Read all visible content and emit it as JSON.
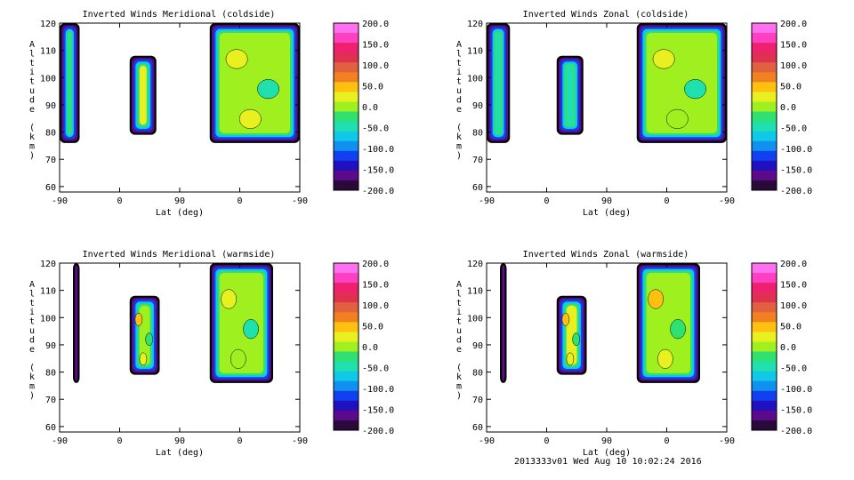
{
  "footer": "2013333v01 Wed Aug 10 10:02:24 2016",
  "chart_data": [
    {
      "type": "contour",
      "title": "Inverted Winds Meridional (coldside)",
      "xlabel": "Lat (deg)",
      "ylabel": "Altitude (km)",
      "x_ticks": [
        "-90",
        "0",
        "90",
        "0",
        "-90"
      ],
      "y_ticks": [
        "60",
        "70",
        "80",
        "90",
        "100",
        "110",
        "120"
      ],
      "ylim": [
        58,
        120
      ],
      "legend": [
        "200.0",
        "150.0",
        "100.0",
        "50.0",
        "0.0",
        "-50.0",
        "-100.0",
        "-150.0",
        "-200.0"
      ],
      "regions": [
        {
          "lat_range": [
            -90,
            -60
          ],
          "alt_range": [
            76,
            120
          ],
          "mean_value": 20
        },
        {
          "lat_range": [
            15,
            55
          ],
          "alt_range": [
            79,
            108
          ],
          "mean_value": 25
        },
        {
          "lat_range": [
            135,
            270
          ],
          "alt_range": [
            76,
            120
          ],
          "mean_value": 10
        }
      ]
    },
    {
      "type": "contour",
      "title": "Inverted Winds Zonal (coldside)",
      "xlabel": "Lat (deg)",
      "ylabel": "Altitude (km)",
      "x_ticks": [
        "-90",
        "0",
        "90",
        "0",
        "-90"
      ],
      "y_ticks": [
        "60",
        "70",
        "80",
        "90",
        "100",
        "110",
        "120"
      ],
      "ylim": [
        58,
        120
      ],
      "legend": [
        "200.0",
        "150.0",
        "100.0",
        "50.0",
        "0.0",
        "-50.0",
        "-100.0",
        "-150.0",
        "-200.0"
      ],
      "regions": [
        {
          "lat_range": [
            -90,
            -55
          ],
          "alt_range": [
            76,
            120
          ],
          "mean_value": -30
        },
        {
          "lat_range": [
            15,
            55
          ],
          "alt_range": [
            79,
            108
          ],
          "mean_value": -40
        },
        {
          "lat_range": [
            135,
            270
          ],
          "alt_range": [
            76,
            120
          ],
          "mean_value": 0
        }
      ]
    },
    {
      "type": "contour",
      "title": "Inverted Winds Meridional (warmside)",
      "xlabel": "Lat (deg)",
      "ylabel": "Altitude (km)",
      "x_ticks": [
        "-90",
        "0",
        "90",
        "0",
        "-90"
      ],
      "y_ticks": [
        "60",
        "70",
        "80",
        "90",
        "100",
        "110",
        "120"
      ],
      "ylim": [
        58,
        120
      ],
      "legend": [
        "200.0",
        "150.0",
        "100.0",
        "50.0",
        "0.0",
        "-50.0",
        "-100.0",
        "-150.0",
        "-200.0"
      ],
      "regions": [
        {
          "lat_range": [
            -70,
            -60
          ],
          "alt_range": [
            76,
            120
          ],
          "mean_value": 10
        },
        {
          "lat_range": [
            15,
            60
          ],
          "alt_range": [
            79,
            108
          ],
          "mean_value": 20
        },
        {
          "lat_range": [
            135,
            230
          ],
          "alt_range": [
            76,
            120
          ],
          "mean_value": 0
        }
      ]
    },
    {
      "type": "contour",
      "title": "Inverted Winds Zonal (warmside)",
      "xlabel": "Lat (deg)",
      "ylabel": "Altitude (km)",
      "x_ticks": [
        "-90",
        "0",
        "90",
        "0",
        "-90"
      ],
      "y_ticks": [
        "60",
        "70",
        "80",
        "90",
        "100",
        "110",
        "120"
      ],
      "ylim": [
        58,
        120
      ],
      "legend": [
        "200.0",
        "150.0",
        "100.0",
        "50.0",
        "0.0",
        "-50.0",
        "-100.0",
        "-150.0",
        "-200.0"
      ],
      "regions": [
        {
          "lat_range": [
            -70,
            -60
          ],
          "alt_range": [
            76,
            120
          ],
          "mean_value": -20
        },
        {
          "lat_range": [
            15,
            60
          ],
          "alt_range": [
            79,
            108
          ],
          "mean_value": 30
        },
        {
          "lat_range": [
            135,
            230
          ],
          "alt_range": [
            76,
            120
          ],
          "mean_value": 20
        }
      ]
    }
  ]
}
